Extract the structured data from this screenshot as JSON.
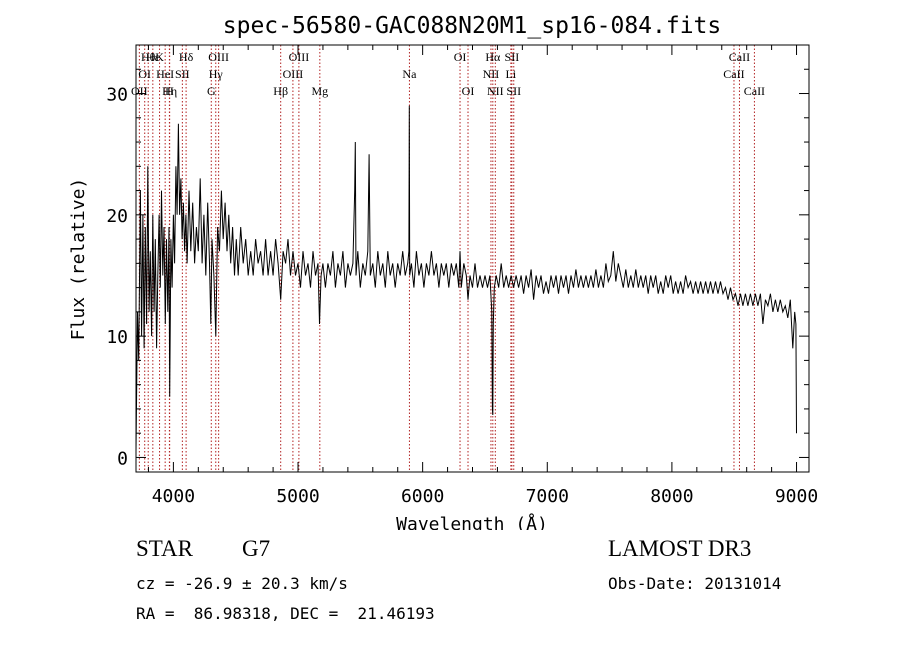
{
  "chart_data": {
    "type": "line",
    "title": "spec-56580-GAC088N20M1_sp16-084.fits",
    "xlabel": "Wavelength (Å)",
    "ylabel": "Flux (relative)",
    "xlim": [
      3700,
      9100
    ],
    "ylim": [
      -1.2,
      34
    ],
    "xticks": [
      4000,
      5000,
      6000,
      7000,
      8000,
      9000
    ],
    "yticks": [
      0,
      10,
      20,
      30
    ],
    "line_color": "#000000",
    "marker_color": "#b22222",
    "spectrum": [
      [
        3700,
        0.5
      ],
      [
        3712,
        12
      ],
      [
        3722,
        8
      ],
      [
        3735,
        22
      ],
      [
        3745,
        10
      ],
      [
        3755,
        20
      ],
      [
        3765,
        9
      ],
      [
        3775,
        19
      ],
      [
        3785,
        11
      ],
      [
        3795,
        24
      ],
      [
        3805,
        12
      ],
      [
        3815,
        17
      ],
      [
        3825,
        10
      ],
      [
        3835,
        20
      ],
      [
        3845,
        12
      ],
      [
        3855,
        18
      ],
      [
        3865,
        9
      ],
      [
        3875,
        15
      ],
      [
        3885,
        20
      ],
      [
        3895,
        14
      ],
      [
        3905,
        22
      ],
      [
        3915,
        15
      ],
      [
        3925,
        19
      ],
      [
        3935,
        11
      ],
      [
        3945,
        18
      ],
      [
        3955,
        12
      ],
      [
        3965,
        19
      ],
      [
        3970,
        5
      ],
      [
        3980,
        18
      ],
      [
        3990,
        14
      ],
      [
        4000,
        20
      ],
      [
        4010,
        16
      ],
      [
        4020,
        24
      ],
      [
        4030,
        20
      ],
      [
        4040,
        27.5
      ],
      [
        4050,
        20
      ],
      [
        4060,
        23
      ],
      [
        4070,
        18
      ],
      [
        4080,
        21
      ],
      [
        4090,
        17
      ],
      [
        4100,
        20
      ],
      [
        4110,
        16
      ],
      [
        4125,
        22
      ],
      [
        4140,
        17
      ],
      [
        4155,
        21
      ],
      [
        4170,
        16
      ],
      [
        4185,
        19
      ],
      [
        4200,
        17
      ],
      [
        4215,
        23
      ],
      [
        4230,
        16
      ],
      [
        4245,
        20
      ],
      [
        4260,
        15
      ],
      [
        4275,
        21
      ],
      [
        4290,
        16
      ],
      [
        4300,
        11
      ],
      [
        4310,
        18
      ],
      [
        4325,
        15
      ],
      [
        4340,
        10
      ],
      [
        4355,
        19
      ],
      [
        4370,
        17
      ],
      [
        4385,
        22
      ],
      [
        4400,
        18
      ],
      [
        4415,
        21
      ],
      [
        4430,
        17
      ],
      [
        4445,
        20
      ],
      [
        4460,
        16
      ],
      [
        4475,
        19
      ],
      [
        4490,
        15
      ],
      [
        4505,
        18
      ],
      [
        4520,
        15
      ],
      [
        4540,
        19
      ],
      [
        4560,
        16
      ],
      [
        4580,
        18
      ],
      [
        4600,
        15
      ],
      [
        4620,
        17
      ],
      [
        4640,
        15
      ],
      [
        4660,
        18
      ],
      [
        4680,
        16
      ],
      [
        4700,
        17
      ],
      [
        4720,
        15
      ],
      [
        4740,
        18
      ],
      [
        4760,
        15
      ],
      [
        4780,
        17
      ],
      [
        4800,
        15
      ],
      [
        4820,
        18
      ],
      [
        4840,
        16
      ],
      [
        4861,
        13
      ],
      [
        4880,
        17
      ],
      [
        4900,
        16
      ],
      [
        4920,
        18
      ],
      [
        4940,
        15
      ],
      [
        4960,
        17
      ],
      [
        4980,
        15
      ],
      [
        5000,
        16
      ],
      [
        5020,
        14
      ],
      [
        5040,
        17
      ],
      [
        5060,
        15
      ],
      [
        5080,
        16
      ],
      [
        5100,
        14
      ],
      [
        5120,
        17
      ],
      [
        5140,
        15
      ],
      [
        5160,
        16
      ],
      [
        5172,
        11
      ],
      [
        5185,
        15
      ],
      [
        5200,
        16
      ],
      [
        5220,
        14
      ],
      [
        5240,
        16
      ],
      [
        5260,
        15
      ],
      [
        5280,
        17
      ],
      [
        5300,
        14
      ],
      [
        5320,
        16
      ],
      [
        5340,
        15
      ],
      [
        5360,
        17
      ],
      [
        5380,
        14
      ],
      [
        5400,
        16
      ],
      [
        5420,
        15
      ],
      [
        5440,
        16
      ],
      [
        5455,
        22
      ],
      [
        5460,
        26
      ],
      [
        5465,
        15
      ],
      [
        5480,
        17
      ],
      [
        5500,
        14
      ],
      [
        5520,
        16
      ],
      [
        5540,
        15
      ],
      [
        5560,
        17
      ],
      [
        5570,
        25
      ],
      [
        5580,
        15
      ],
      [
        5600,
        16
      ],
      [
        5620,
        14
      ],
      [
        5640,
        17
      ],
      [
        5660,
        15
      ],
      [
        5680,
        16
      ],
      [
        5700,
        14
      ],
      [
        5720,
        17
      ],
      [
        5740,
        15
      ],
      [
        5760,
        16
      ],
      [
        5780,
        14
      ],
      [
        5800,
        16
      ],
      [
        5820,
        15
      ],
      [
        5840,
        17
      ],
      [
        5860,
        15
      ],
      [
        5880,
        16
      ],
      [
        5890,
        17
      ],
      [
        5893,
        29
      ],
      [
        5896,
        15
      ],
      [
        5910,
        16
      ],
      [
        5930,
        14
      ],
      [
        5950,
        17
      ],
      [
        5970,
        15
      ],
      [
        5990,
        16
      ],
      [
        6010,
        14
      ],
      [
        6030,
        16
      ],
      [
        6050,
        15
      ],
      [
        6070,
        17
      ],
      [
        6090,
        15
      ],
      [
        6110,
        16
      ],
      [
        6130,
        14
      ],
      [
        6150,
        16
      ],
      [
        6170,
        15
      ],
      [
        6190,
        16
      ],
      [
        6210,
        14
      ],
      [
        6230,
        16
      ],
      [
        6250,
        15
      ],
      [
        6270,
        16
      ],
      [
        6290,
        14
      ],
      [
        6300,
        17
      ],
      [
        6310,
        14
      ],
      [
        6330,
        16
      ],
      [
        6350,
        15
      ],
      [
        6364,
        13
      ],
      [
        6380,
        15
      ],
      [
        6400,
        14
      ],
      [
        6420,
        16
      ],
      [
        6440,
        14
      ],
      [
        6460,
        15
      ],
      [
        6480,
        14
      ],
      [
        6500,
        15
      ],
      [
        6520,
        14
      ],
      [
        6540,
        15
      ],
      [
        6555,
        12
      ],
      [
        6560,
        4
      ],
      [
        6563,
        3.5
      ],
      [
        6567,
        11
      ],
      [
        6575,
        14
      ],
      [
        6590,
        15
      ],
      [
        6610,
        14
      ],
      [
        6630,
        16
      ],
      [
        6650,
        14
      ],
      [
        6670,
        15
      ],
      [
        6690,
        14
      ],
      [
        6710,
        15
      ],
      [
        6730,
        14
      ],
      [
        6750,
        15
      ],
      [
        6770,
        14
      ],
      [
        6790,
        15
      ],
      [
        6810,
        13.5
      ],
      [
        6830,
        15
      ],
      [
        6850,
        14
      ],
      [
        6870,
        15.5
      ],
      [
        6890,
        13
      ],
      [
        6910,
        15
      ],
      [
        6930,
        14
      ],
      [
        6950,
        15
      ],
      [
        6970,
        13.5
      ],
      [
        6990,
        14.5
      ],
      [
        7010,
        13.5
      ],
      [
        7030,
        15
      ],
      [
        7050,
        14
      ],
      [
        7070,
        15
      ],
      [
        7090,
        13.5
      ],
      [
        7110,
        15
      ],
      [
        7130,
        14
      ],
      [
        7150,
        15
      ],
      [
        7170,
        13.5
      ],
      [
        7190,
        15
      ],
      [
        7210,
        14
      ],
      [
        7230,
        15.5
      ],
      [
        7250,
        14
      ],
      [
        7270,
        15
      ],
      [
        7290,
        14
      ],
      [
        7310,
        15
      ],
      [
        7330,
        14
      ],
      [
        7350,
        15
      ],
      [
        7370,
        14
      ],
      [
        7390,
        15.5
      ],
      [
        7410,
        14
      ],
      [
        7430,
        15
      ],
      [
        7450,
        14
      ],
      [
        7470,
        16
      ],
      [
        7490,
        14.5
      ],
      [
        7510,
        15
      ],
      [
        7530,
        17
      ],
      [
        7550,
        14.5
      ],
      [
        7570,
        16
      ],
      [
        7590,
        15
      ],
      [
        7610,
        14
      ],
      [
        7630,
        15.5
      ],
      [
        7650,
        14
      ],
      [
        7670,
        15
      ],
      [
        7690,
        14
      ],
      [
        7710,
        15.5
      ],
      [
        7730,
        14
      ],
      [
        7750,
        15
      ],
      [
        7770,
        14
      ],
      [
        7790,
        15
      ],
      [
        7810,
        13.5
      ],
      [
        7830,
        15
      ],
      [
        7850,
        14
      ],
      [
        7870,
        15
      ],
      [
        7890,
        13.5
      ],
      [
        7910,
        14.5
      ],
      [
        7930,
        13.5
      ],
      [
        7950,
        15
      ],
      [
        7970,
        14
      ],
      [
        7990,
        15
      ],
      [
        8010,
        13.5
      ],
      [
        8030,
        14.5
      ],
      [
        8050,
        13.5
      ],
      [
        8070,
        14.5
      ],
      [
        8090,
        13.5
      ],
      [
        8110,
        15
      ],
      [
        8130,
        14
      ],
      [
        8150,
        14.5
      ],
      [
        8170,
        13.5
      ],
      [
        8190,
        14.5
      ],
      [
        8210,
        13.5
      ],
      [
        8230,
        14.5
      ],
      [
        8250,
        13.5
      ],
      [
        8270,
        14.5
      ],
      [
        8290,
        13.5
      ],
      [
        8310,
        14.5
      ],
      [
        8330,
        13.5
      ],
      [
        8350,
        14.5
      ],
      [
        8370,
        13.5
      ],
      [
        8390,
        14.5
      ],
      [
        8410,
        13.5
      ],
      [
        8430,
        14
      ],
      [
        8450,
        13
      ],
      [
        8470,
        14
      ],
      [
        8490,
        13
      ],
      [
        8510,
        13.5
      ],
      [
        8530,
        12.5
      ],
      [
        8550,
        13.5
      ],
      [
        8570,
        12.5
      ],
      [
        8590,
        13.5
      ],
      [
        8610,
        12.5
      ],
      [
        8630,
        13.5
      ],
      [
        8650,
        12.5
      ],
      [
        8670,
        13.5
      ],
      [
        8690,
        12.5
      ],
      [
        8710,
        13.5
      ],
      [
        8730,
        11
      ],
      [
        8750,
        13
      ],
      [
        8770,
        12.5
      ],
      [
        8790,
        13.5
      ],
      [
        8810,
        12
      ],
      [
        8830,
        13
      ],
      [
        8850,
        12
      ],
      [
        8870,
        13
      ],
      [
        8890,
        12
      ],
      [
        8910,
        12.5
      ],
      [
        8930,
        11.5
      ],
      [
        8950,
        13
      ],
      [
        8970,
        9
      ],
      [
        8985,
        12
      ],
      [
        8995,
        11
      ],
      [
        9000,
        2
      ]
    ],
    "line_markers": [
      {
        "label": "Hθ",
        "wave": 3798,
        "row": 0
      },
      {
        "label": "OI",
        "wave": 3770,
        "row": 1
      },
      {
        "label": "OII",
        "wave": 3727,
        "row": 2
      },
      {
        "label": "Hε",
        "wave": 3835,
        "row": 0
      },
      {
        "label": "K",
        "wave": 3889,
        "row": 0
      },
      {
        "label": "HeI",
        "wave": 3934,
        "row": 1
      },
      {
        "label": "Hη",
        "wave": 3970,
        "row": 2
      },
      {
        "label": "SII",
        "wave": 4072,
        "row": 1
      },
      {
        "label": "Hδ",
        "wave": 4102,
        "row": 0
      },
      {
        "label": "H",
        "wave": 3968,
        "row": 2
      },
      {
        "label": "OIII",
        "wave": 4363,
        "row": 0
      },
      {
        "label": "Hγ",
        "wave": 4340,
        "row": 1
      },
      {
        "label": "G",
        "wave": 4304,
        "row": 2
      },
      {
        "label": "Hβ",
        "wave": 4861,
        "row": 2
      },
      {
        "label": "OIII",
        "wave": 5007,
        "row": 0
      },
      {
        "label": "OIII",
        "wave": 4959,
        "row": 1
      },
      {
        "label": "Mg",
        "wave": 5175,
        "row": 2
      },
      {
        "label": "Na",
        "wave": 5894,
        "row": 1
      },
      {
        "label": "OI",
        "wave": 6300,
        "row": 0
      },
      {
        "label": "OI",
        "wave": 6364,
        "row": 2
      },
      {
        "label": "Hα",
        "wave": 6563,
        "row": 0
      },
      {
        "label": "SII",
        "wave": 6716,
        "row": 0
      },
      {
        "label": "NII",
        "wave": 6548,
        "row": 1
      },
      {
        "label": "Li",
        "wave": 6708,
        "row": 1
      },
      {
        "label": "NII",
        "wave": 6583,
        "row": 2
      },
      {
        "label": "SII",
        "wave": 6731,
        "row": 2
      },
      {
        "label": "CaII",
        "wave": 8542,
        "row": 0
      },
      {
        "label": "CaII",
        "wave": 8498,
        "row": 1
      },
      {
        "label": "CaII",
        "wave": 8662,
        "row": 2
      }
    ]
  },
  "info": {
    "object_class": "STAR",
    "subclass": "G7",
    "survey": "LAMOST DR3",
    "redshift": "cz = -26.9 ± 20.3 km/s",
    "obs_date": "Obs-Date: 20131014",
    "coords": "RA =  86.98318, DEC =  21.46193"
  }
}
